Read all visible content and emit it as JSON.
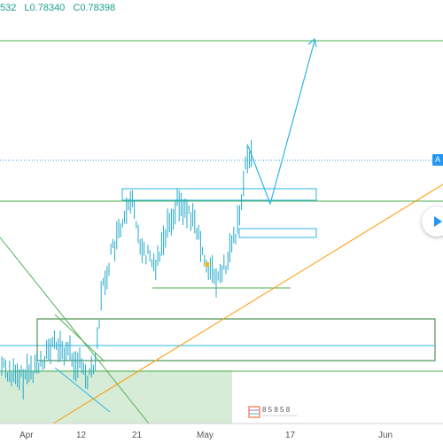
{
  "ohlc": {
    "high_fragment": "532",
    "low": "L0.78340",
    "close": "C0.78398"
  },
  "price_tag": {
    "label": "A"
  },
  "time_axis": {
    "labels": [
      "Apr",
      "12",
      "21",
      "May",
      "17",
      "Jun"
    ]
  },
  "watermark": {
    "text": "8 5 8 5 8"
  },
  "colors": {
    "candles": "#26a9c9",
    "support_lines": "#4caf50",
    "trendline": "#ff9800",
    "projection": "#29b6e8",
    "current_price_line": "#2196f3",
    "range_fill": "#c8e6c9"
  },
  "icons": {
    "play": "play-icon"
  }
}
